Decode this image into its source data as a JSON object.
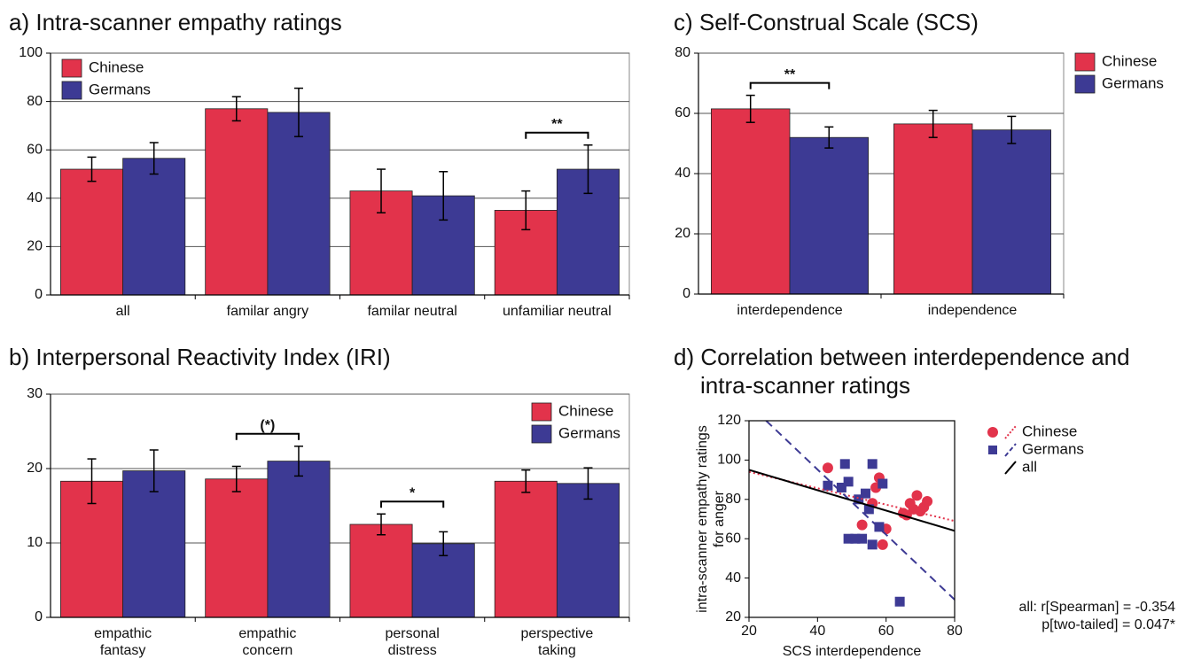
{
  "chart_data": [
    {
      "type": "bar",
      "title": "a) Intra-scanner empathy ratings",
      "categories": [
        "all",
        "familar angry",
        "familar neutral",
        "unfamiliar neutral"
      ],
      "series": [
        {
          "name": "Chinese",
          "color": "#e2334b",
          "values": [
            52,
            77,
            43,
            35
          ],
          "errors": [
            5,
            5,
            9,
            8
          ]
        },
        {
          "name": "Germans",
          "color": "#3d3a94",
          "values": [
            56.5,
            75.5,
            41,
            52
          ],
          "errors": [
            6.5,
            10,
            10,
            10
          ]
        }
      ],
      "ylim": [
        0,
        100
      ],
      "yticks": [
        0,
        20,
        40,
        60,
        80,
        100
      ],
      "grid": true,
      "legend": "upper left",
      "annotations": [
        {
          "text": "**",
          "category": 3
        }
      ]
    },
    {
      "type": "bar",
      "title": "b) Interpersonal Reactivity Index (IRI)",
      "categories": [
        [
          "empathic",
          "fantasy"
        ],
        [
          "empathic",
          "concern"
        ],
        [
          "personal",
          "distress"
        ],
        [
          "perspective",
          "taking"
        ]
      ],
      "series": [
        {
          "name": "Chinese",
          "color": "#e2334b",
          "values": [
            18.3,
            18.6,
            12.5,
            18.3
          ],
          "errors": [
            3,
            1.7,
            1.4,
            1.5
          ]
        },
        {
          "name": "Germans",
          "color": "#3d3a94",
          "values": [
            19.7,
            21,
            9.9,
            18
          ],
          "errors": [
            2.8,
            2,
            1.6,
            2.1
          ]
        }
      ],
      "ylim": [
        0,
        30
      ],
      "yticks": [
        0,
        10,
        20,
        30
      ],
      "grid": true,
      "legend": "upper right",
      "annotations": [
        {
          "text": "(*)",
          "category": 1
        },
        {
          "text": "*",
          "category": 2
        }
      ]
    },
    {
      "type": "bar",
      "title": "c) Self-Construal Scale (SCS)",
      "categories": [
        "interdependence",
        "independence"
      ],
      "series": [
        {
          "name": "Chinese",
          "color": "#e2334b",
          "values": [
            61.5,
            56.5
          ],
          "errors": [
            4.5,
            4.5
          ]
        },
        {
          "name": "Germans",
          "color": "#3d3a94",
          "values": [
            52,
            54.5
          ],
          "errors": [
            3.5,
            4.5
          ]
        }
      ],
      "ylim": [
        0,
        80
      ],
      "yticks": [
        0,
        20,
        40,
        60,
        80
      ],
      "grid": true,
      "legend": "outside right",
      "annotations": [
        {
          "text": "**",
          "category": 0
        }
      ]
    },
    {
      "type": "scatter",
      "title": [
        "d) Correlation between interdependence and",
        "intra-scanner ratings"
      ],
      "x_label": "SCS interdependence",
      "y_label": [
        "intra-scanner empathy ratings",
        "for anger"
      ],
      "series": [
        {
          "name": "Chinese",
          "color": "#e2334b",
          "marker": "circle",
          "line_style": "dotted",
          "x": [
            43,
            53,
            56,
            57,
            58,
            59,
            60,
            65,
            66,
            67,
            68,
            69,
            70,
            71,
            72
          ],
          "values": [
            96,
            67,
            78,
            86,
            91,
            57,
            65,
            73,
            72,
            78,
            75,
            82,
            74,
            76,
            79
          ],
          "fit_x": [
            20,
            80
          ],
          "fit_values": [
            94,
            69
          ]
        },
        {
          "name": "Germans",
          "color": "#3d3a94",
          "marker": "square",
          "line_style": "dashed",
          "x": [
            43,
            47,
            48,
            49,
            49,
            51,
            52,
            53,
            54,
            55,
            56,
            56,
            58,
            59,
            64
          ],
          "values": [
            87,
            86,
            98,
            60,
            89,
            60,
            80,
            60,
            83,
            75,
            98,
            57,
            66,
            88,
            28
          ],
          "fit_x": [
            25,
            80
          ],
          "fit_values": [
            120,
            29
          ]
        },
        {
          "name": "all",
          "color": "#000000",
          "line_style": "solid",
          "fit_x": [
            20,
            80
          ],
          "fit_values": [
            95,
            64
          ]
        }
      ],
      "xlim": [
        20,
        80
      ],
      "xticks": [
        20,
        40,
        60,
        80
      ],
      "ylim": [
        20,
        120
      ],
      "yticks": [
        20,
        40,
        60,
        80,
        100,
        120
      ],
      "legend": "outside right",
      "annotations": [
        "all: r[Spearman] = -0.354",
        "p[two-tailed] = 0.047*"
      ]
    }
  ]
}
